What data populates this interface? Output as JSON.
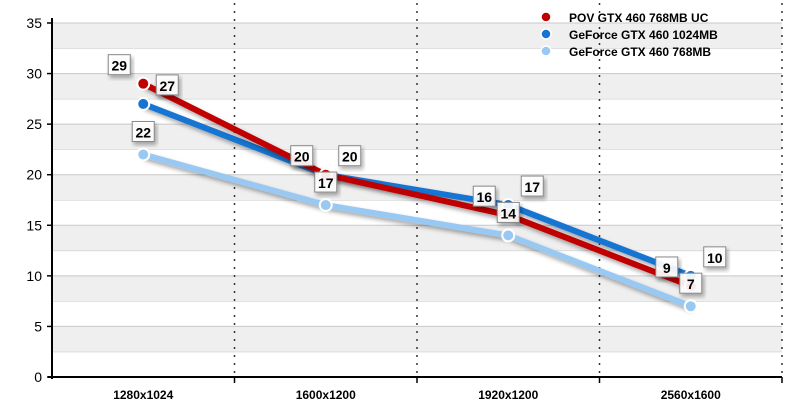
{
  "chart_data": {
    "type": "line",
    "title": "",
    "xlabel": "",
    "ylabel": "",
    "categories": [
      "1280x1024",
      "1600x1200",
      "1920x1200",
      "2560x1600"
    ],
    "ylim": [
      0,
      35
    ],
    "yticks": [
      0,
      5,
      10,
      15,
      20,
      25,
      30,
      35
    ],
    "grid": true,
    "legend_position": "top-right",
    "series": [
      {
        "name": "POV GTX 460 768MB UC",
        "color": "#c00000",
        "values": [
          29,
          20,
          16,
          9
        ]
      },
      {
        "name": "GeForce GTX 460 1024MB",
        "color": "#1874d2",
        "values": [
          27,
          20,
          17,
          10
        ]
      },
      {
        "name": "GeForce GTX 460 768MB",
        "color": "#99c9f2",
        "values": [
          22,
          17,
          14,
          7
        ]
      }
    ]
  }
}
